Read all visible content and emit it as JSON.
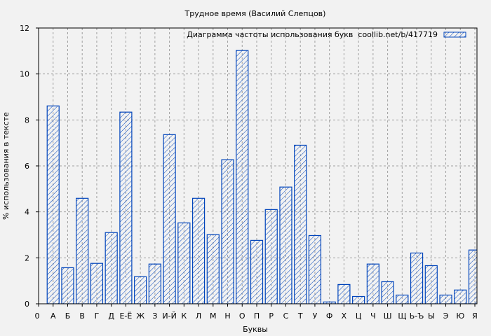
{
  "chart_data": {
    "type": "bar",
    "title": "Трудное время (Василий Слепцов)",
    "xlabel": "Буквы",
    "ylabel": "% использования в тексте",
    "ylim": [
      0,
      12
    ],
    "yticks": [
      0,
      2,
      4,
      6,
      8,
      10,
      12
    ],
    "grid": true,
    "legend_position": "top-right",
    "series": [
      {
        "name": "Диаграмма частоты использования букв  coollib.net/b/417719",
        "values": [
          8.61,
          1.57,
          4.59,
          1.76,
          3.1,
          8.34,
          1.18,
          1.73,
          7.36,
          3.52,
          4.59,
          3.01,
          6.27,
          11.02,
          2.76,
          4.1,
          5.08,
          6.9,
          2.97,
          0.08,
          0.84,
          0.32,
          1.73,
          0.96,
          0.38,
          2.21,
          1.66,
          0.38,
          0.6,
          2.34
        ]
      }
    ],
    "origin_label": "0",
    "categories": [
      "А",
      "Б",
      "В",
      "Г",
      "Д",
      "Е-Ё",
      "Ж",
      "З",
      "И-Й",
      "К",
      "Л",
      "М",
      "Н",
      "О",
      "П",
      "Р",
      "С",
      "Т",
      "У",
      "Ф",
      "Х",
      "Ц",
      "Ч",
      "Ш",
      "Щ",
      "Ь-Ъ",
      "Ы",
      "Э",
      "Ю",
      "Я"
    ],
    "colors": {
      "bar": "#0044bb",
      "grid": "#a0a0a0",
      "background": "#f2f2f2"
    }
  }
}
